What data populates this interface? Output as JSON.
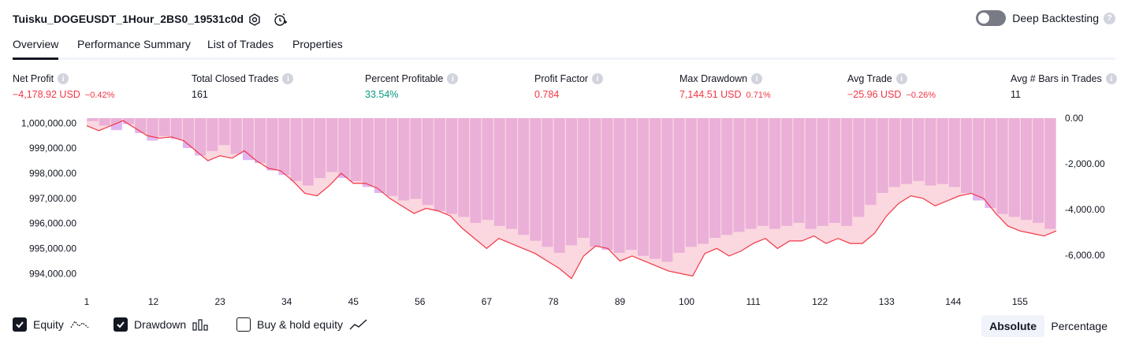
{
  "header": {
    "title": "Tuisku_DOGEUSDT_1Hour_2BS0_19531c0d",
    "deep_backtesting_label": "Deep Backtesting",
    "deep_backtesting_enabled": false
  },
  "tabs": [
    {
      "label": "Overview",
      "active": true
    },
    {
      "label": "Performance Summary",
      "active": false
    },
    {
      "label": "List of Trades",
      "active": false
    },
    {
      "label": "Properties",
      "active": false
    }
  ],
  "stats": {
    "net_profit": {
      "label": "Net Profit",
      "value": "−4,178.92 USD",
      "pct": "−0.42%"
    },
    "total_closed_trades": {
      "label": "Total Closed Trades",
      "value": "161"
    },
    "percent_profitable": {
      "label": "Percent Profitable",
      "value": "33.54%"
    },
    "profit_factor": {
      "label": "Profit Factor",
      "value": "0.784"
    },
    "max_drawdown": {
      "label": "Max Drawdown",
      "value": "7,144.51 USD",
      "pct": "0.71%"
    },
    "avg_trade": {
      "label": "Avg Trade",
      "value": "−25.96 USD",
      "pct": "−0.26%"
    },
    "avg_bars": {
      "label": "Avg # Bars in Trades",
      "value": "11"
    }
  },
  "chart_data": {
    "type": "line",
    "left_axis": {
      "ticks": [
        "1,000,000.00",
        "999,000.00",
        "998,000.00",
        "997,000.00",
        "996,000.00",
        "995,000.00",
        "994,000.00"
      ],
      "ylim": [
        993600,
        1000200
      ]
    },
    "right_axis": {
      "ticks": [
        "0.00",
        "-2,000.00",
        "-4,000.00",
        "-6,000.00"
      ]
    },
    "x_ticks": [
      "1",
      "12",
      "23",
      "34",
      "45",
      "56",
      "67",
      "78",
      "89",
      "100",
      "111",
      "122",
      "133",
      "144",
      "155"
    ],
    "x_range": [
      1,
      161
    ],
    "equity_series": {
      "name": "Equity",
      "color": "#f23645",
      "x": [
        1,
        3,
        5,
        7,
        9,
        11,
        13,
        15,
        17,
        19,
        21,
        23,
        25,
        27,
        29,
        31,
        33,
        35,
        37,
        39,
        41,
        43,
        45,
        47,
        49,
        51,
        53,
        55,
        57,
        59,
        61,
        63,
        65,
        67,
        69,
        71,
        73,
        75,
        77,
        79,
        81,
        83,
        85,
        87,
        89,
        91,
        93,
        95,
        97,
        99,
        101,
        103,
        105,
        107,
        109,
        111,
        113,
        115,
        117,
        119,
        121,
        123,
        125,
        127,
        129,
        131,
        133,
        135,
        137,
        139,
        141,
        143,
        145,
        147,
        149,
        151,
        153,
        155,
        157,
        159,
        161
      ],
      "values": [
        999900,
        999700,
        999900,
        1000100,
        999800,
        999500,
        999400,
        999450,
        999300,
        998900,
        998500,
        998700,
        998600,
        998900,
        998500,
        998200,
        998100,
        997700,
        997200,
        997100,
        997500,
        998000,
        997600,
        997600,
        997400,
        997000,
        996700,
        996400,
        996600,
        996500,
        996300,
        995800,
        995400,
        995000,
        995400,
        995200,
        995000,
        994800,
        994500,
        994200,
        993800,
        994700,
        995100,
        995000,
        994500,
        994700,
        994500,
        994300,
        994100,
        994000,
        993900,
        994800,
        995000,
        994700,
        994900,
        995200,
        995400,
        995000,
        995300,
        995300,
        995500,
        995200,
        995400,
        995200,
        995200,
        995600,
        996300,
        996800,
        997100,
        997000,
        996700,
        996900,
        997100,
        997200,
        997000,
        996400,
        995900,
        995700,
        995600,
        995500,
        995700
      ]
    },
    "drawdown_series": {
      "name": "Drawdown",
      "color": "#e0b6f2",
      "values_pct_of_max": [
        0.02,
        0.05,
        0.08,
        0.04,
        0.1,
        0.15,
        0.12,
        0.14,
        0.2,
        0.25,
        0.22,
        0.18,
        0.24,
        0.28,
        0.3,
        0.35,
        0.38,
        0.42,
        0.45,
        0.4,
        0.36,
        0.4,
        0.42,
        0.46,
        0.5,
        0.52,
        0.55,
        0.54,
        0.58,
        0.62,
        0.64,
        0.66,
        0.7,
        0.68,
        0.72,
        0.74,
        0.78,
        0.82,
        0.86,
        0.9,
        0.85,
        0.8,
        0.86,
        0.88,
        0.9,
        0.88,
        0.92,
        0.94,
        0.96,
        0.9,
        0.86,
        0.84,
        0.8,
        0.78,
        0.76,
        0.74,
        0.72,
        0.74,
        0.72,
        0.7,
        0.74,
        0.72,
        0.7,
        0.72,
        0.66,
        0.58,
        0.5,
        0.46,
        0.44,
        0.42,
        0.45,
        0.44,
        0.46,
        0.5,
        0.55,
        0.6,
        0.64,
        0.66,
        0.68,
        0.7,
        0.74
      ]
    }
  },
  "legend": {
    "equity": {
      "label": "Equity",
      "checked": true
    },
    "drawdown": {
      "label": "Drawdown",
      "checked": true
    },
    "buy_hold": {
      "label": "Buy & hold equity",
      "checked": false
    }
  },
  "view_modes": {
    "absolute": "Absolute",
    "percentage": "Percentage",
    "active": "absolute"
  }
}
